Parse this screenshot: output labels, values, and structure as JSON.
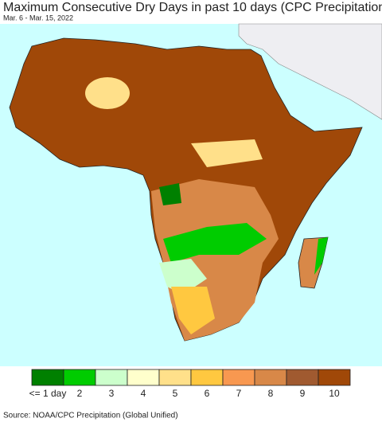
{
  "header": {
    "title": "Maximum Consecutive Dry Days in past 10 days (CPC Precipitation)",
    "subtitle": "Mar. 6 - Mar. 15, 2022"
  },
  "legend": {
    "items": [
      {
        "label": "<= 1 day",
        "color": "#008000"
      },
      {
        "label": "2",
        "color": "#00cc00"
      },
      {
        "label": "3",
        "color": "#ccffcc"
      },
      {
        "label": "4",
        "color": "#ffffcc"
      },
      {
        "label": "5",
        "color": "#ffe08a"
      },
      {
        "label": "6",
        "color": "#ffc840"
      },
      {
        "label": "7",
        "color": "#f89850"
      },
      {
        "label": "8",
        "color": "#d88848"
      },
      {
        "label": "9",
        "color": "#a05a30"
      },
      {
        "label": "10",
        "color": "#a04808"
      }
    ]
  },
  "footer": {
    "source": "Source: NOAA/CPC Precipitation (Global Unified)"
  }
}
